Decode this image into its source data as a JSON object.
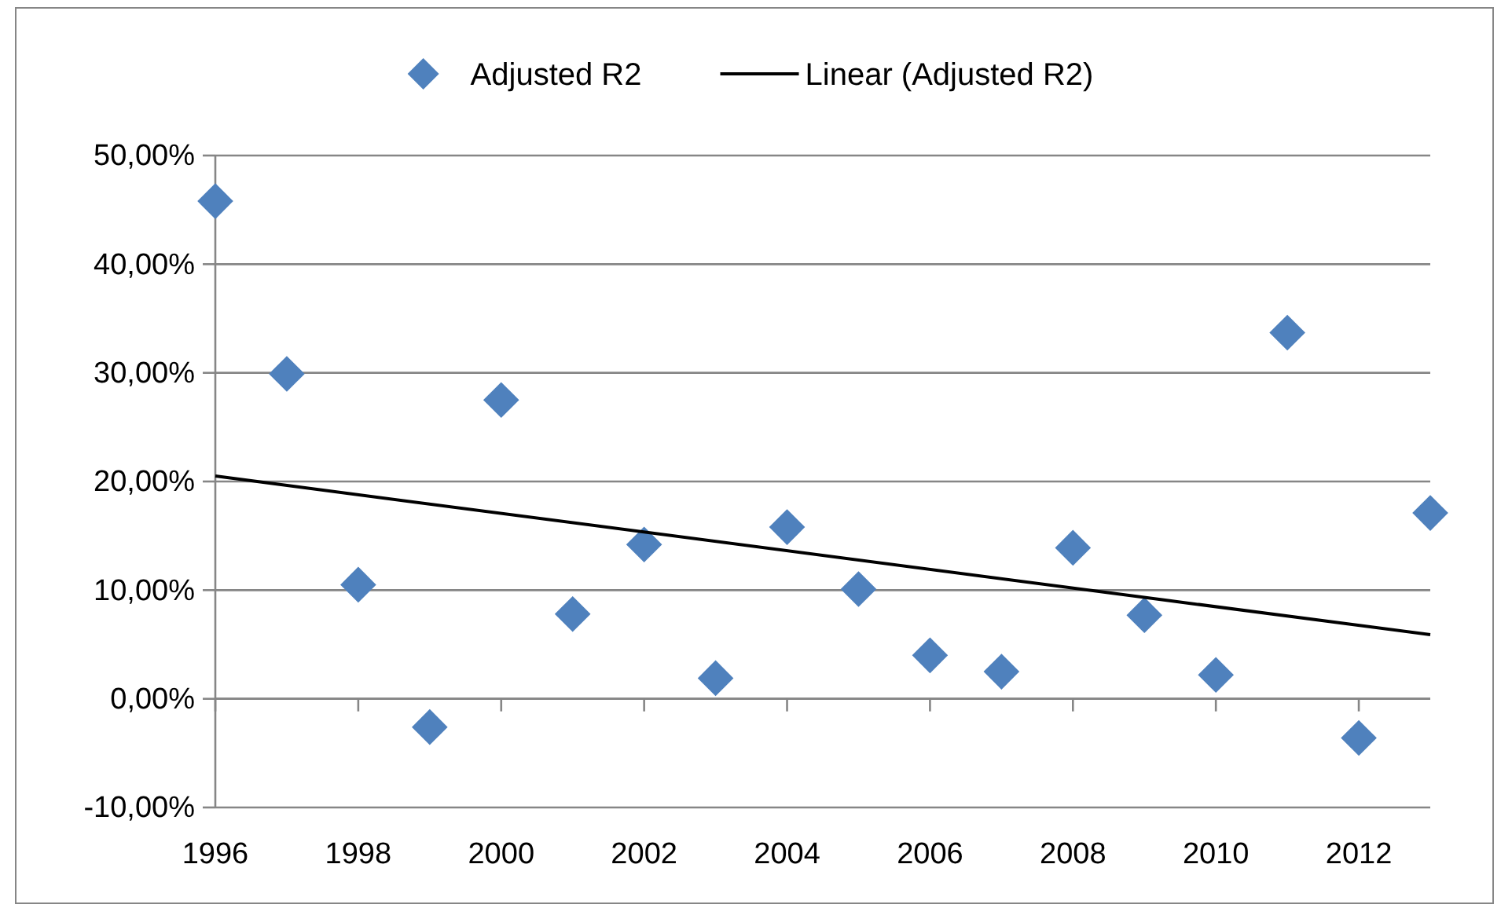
{
  "chart_data": {
    "type": "scatter",
    "xlim": [
      1996,
      2013
    ],
    "xticks": [
      1996,
      1998,
      2000,
      2002,
      2004,
      2006,
      2008,
      2010,
      2012
    ],
    "ylim": [
      -10,
      50
    ],
    "yticks": [
      {
        "value": -10,
        "label": "-10,00%"
      },
      {
        "value": 0,
        "label": "0,00%"
      },
      {
        "value": 10,
        "label": "10,00%"
      },
      {
        "value": 20,
        "label": "20,00%"
      },
      {
        "value": 30,
        "label": "30,00%"
      },
      {
        "value": 40,
        "label": "40,00%"
      },
      {
        "value": 50,
        "label": "50,00%"
      }
    ],
    "grid": "y",
    "legend": "top",
    "marker": "diamond",
    "series": [
      {
        "name": "Adjusted R2",
        "color": "#4f81bd",
        "x": [
          1996,
          1997,
          1998,
          1999,
          2000,
          2001,
          2002,
          2003,
          2004,
          2005,
          2006,
          2007,
          2008,
          2009,
          2010,
          2011,
          2012,
          2013
        ],
        "values": [
          45.8,
          29.9,
          10.5,
          -2.6,
          27.5,
          7.8,
          14.2,
          1.9,
          15.8,
          10.1,
          4.0,
          2.5,
          13.9,
          7.7,
          2.2,
          33.7,
          -3.6,
          17.1
        ]
      },
      {
        "name": "Linear (Adjusted R2)",
        "type": "line",
        "color": "#000000",
        "line_style": "solid",
        "marker": "none",
        "x": [
          1996,
          2013
        ],
        "values": [
          20.5,
          5.9
        ]
      }
    ]
  }
}
